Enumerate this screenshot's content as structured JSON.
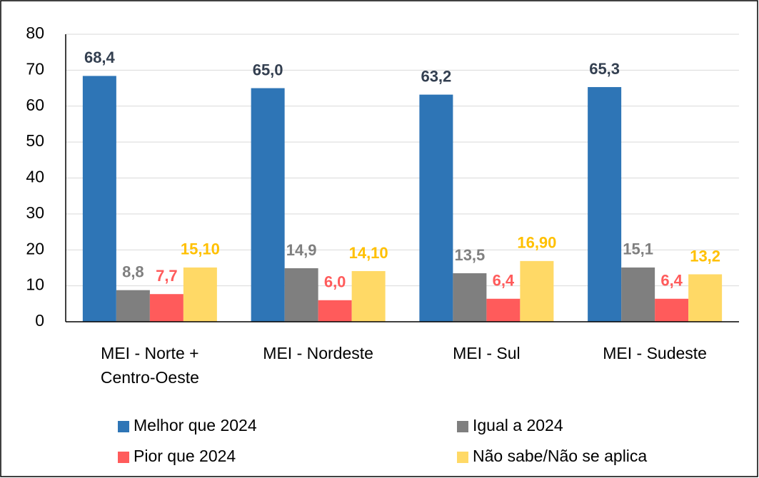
{
  "chart_data": {
    "type": "bar",
    "categories": [
      "MEI - Norte + Centro-Oeste",
      "MEI - Nordeste",
      "MEI - Sul",
      "MEI - Sudeste"
    ],
    "series": [
      {
        "name": "Melhor que 2024",
        "color": "#2e75b6",
        "label_color": "#333f50",
        "values": [
          68.4,
          65.0,
          63.2,
          65.3
        ],
        "value_labels": [
          "68,4",
          "65,0",
          "63,2",
          "65,3"
        ]
      },
      {
        "name": "Igual a 2024",
        "color": "#7f7f7f",
        "label_color": "#7f7f7f",
        "values": [
          8.8,
          14.9,
          13.5,
          15.1
        ],
        "value_labels": [
          "8,8",
          "14,9",
          "13,5",
          "15,1"
        ]
      },
      {
        "name": "Pior que 2024",
        "color": "#ff5b5b",
        "label_color": "#ff5b5b",
        "values": [
          7.7,
          6.0,
          6.4,
          6.4
        ],
        "value_labels": [
          "7,7",
          "6,0",
          "6,4",
          "6,4"
        ]
      },
      {
        "name": "Não sabe/Não se aplica",
        "color": "#ffd966",
        "label_color": "#ffc000",
        "values": [
          15.1,
          14.1,
          16.9,
          13.2
        ],
        "value_labels": [
          "15,10",
          "14,10",
          "16,90",
          "13,2"
        ]
      }
    ],
    "ylim": [
      0,
      80
    ],
    "yticks": [
      0,
      10,
      20,
      30,
      40,
      50,
      60,
      70,
      80
    ],
    "grid": true,
    "legend": "bottom"
  }
}
